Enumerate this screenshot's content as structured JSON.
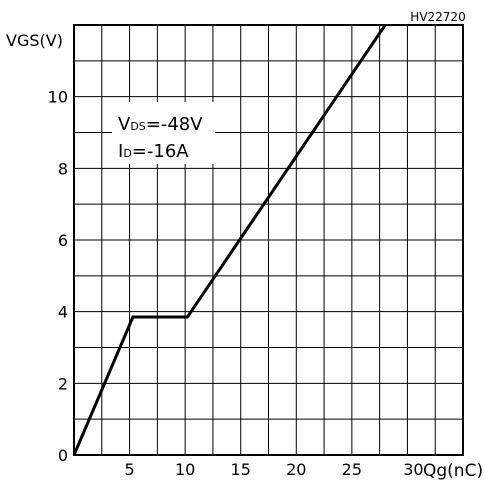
{
  "chart_data": {
    "type": "line",
    "figure_code": "HV22720",
    "ylabel": "VGS(V)",
    "xlabel": "Qg(nC)",
    "xlim": [
      0,
      35
    ],
    "ylim": [
      0,
      12
    ],
    "x_ticks": [
      0,
      5,
      10,
      15,
      20,
      25,
      30
    ],
    "x_tick_labels": [
      "",
      "5",
      "10",
      "15",
      "20",
      "25",
      "30"
    ],
    "y_ticks": [
      0,
      2,
      4,
      6,
      8,
      10
    ],
    "y_tick_labels": [
      "0",
      "2",
      "4",
      "6",
      "8",
      "10"
    ],
    "grid": true,
    "annotations": [
      {
        "line1_main": "V",
        "line1_sub": "DS",
        "line1_rest": "=-48V"
      },
      {
        "line2_main": "I",
        "line2_sub": "D",
        "line2_rest": "=-16A"
      }
    ],
    "series": [
      {
        "x": [
          0,
          5.3,
          10.2,
          28.0
        ],
        "y": [
          0,
          3.85,
          3.85,
          12.0
        ]
      }
    ]
  }
}
